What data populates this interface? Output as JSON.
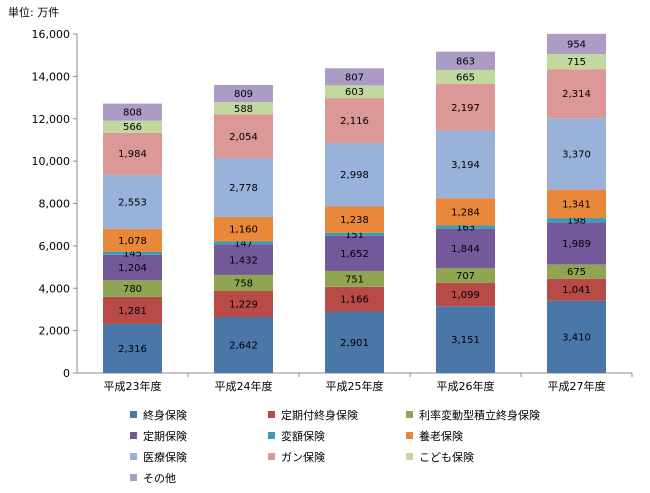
{
  "chart_data": {
    "type": "bar",
    "stacked": true,
    "unit_label": "単位: 万件",
    "categories": [
      "平成23年度",
      "平成24年度",
      "平成25年度",
      "平成26年度",
      "平成27年度"
    ],
    "ylim": [
      0,
      16000
    ],
    "yticks": [
      0,
      2000,
      4000,
      6000,
      8000,
      10000,
      12000,
      14000,
      16000
    ],
    "ytick_labels": [
      "0",
      "2,000",
      "4,000",
      "6,000",
      "8,000",
      "10,000",
      "12,000",
      "14,000",
      "16,000"
    ],
    "series": [
      {
        "name": "終身保険",
        "color": "#4a76a8",
        "values": [
          2316,
          2642,
          2901,
          3151,
          3410
        ],
        "labels": [
          "2,316",
          "2,642",
          "2,901",
          "3,151",
          "3,410"
        ]
      },
      {
        "name": "定期付終身保険",
        "color": "#b84a48",
        "values": [
          1281,
          1229,
          1166,
          1099,
          1041
        ],
        "labels": [
          "1,281",
          "1,229",
          "1,166",
          "1,099",
          "1,041"
        ]
      },
      {
        "name": "利率変動型積立終身保険",
        "color": "#8fa552",
        "values": [
          780,
          758,
          751,
          707,
          675
        ],
        "labels": [
          "780",
          "758",
          "751",
          "707",
          "675"
        ]
      },
      {
        "name": "定期保険",
        "color": "#74599a",
        "values": [
          1204,
          1432,
          1652,
          1844,
          1989
        ],
        "labels": [
          "1,204",
          "1,432",
          "1,652",
          "1,844",
          "1,989"
        ]
      },
      {
        "name": "変額保険",
        "color": "#3d9cb5",
        "values": [
          145,
          147,
          151,
          163,
          198
        ],
        "labels": [
          "145",
          "147",
          "151",
          "163",
          "198"
        ]
      },
      {
        "name": "養老保険",
        "color": "#e9883a",
        "values": [
          1078,
          1160,
          1238,
          1284,
          1341
        ],
        "labels": [
          "1,078",
          "1,160",
          "1,238",
          "1,284",
          "1,341"
        ]
      },
      {
        "name": "医療保険",
        "color": "#98b2d9",
        "values": [
          2553,
          2778,
          2998,
          3194,
          3370
        ],
        "labels": [
          "2,553",
          "2,778",
          "2,998",
          "3,194",
          "3,370"
        ]
      },
      {
        "name": "ガン保険",
        "color": "#dc9896",
        "values": [
          1984,
          2054,
          2116,
          2197,
          2314
        ],
        "labels": [
          "1,984",
          "2,054",
          "2,116",
          "2,197",
          "2,314"
        ]
      },
      {
        "name": "こども保険",
        "color": "#c3d89e",
        "values": [
          566,
          588,
          603,
          665,
          715
        ],
        "labels": [
          "566",
          "588",
          "603",
          "665",
          "715"
        ]
      },
      {
        "name": "その他",
        "color": "#ac9cc5",
        "values": [
          808,
          809,
          807,
          863,
          954
        ],
        "labels": [
          "808",
          "809",
          "807",
          "863",
          "954"
        ]
      }
    ],
    "legend_position": "bottom",
    "grid": false,
    "title": "",
    "xlabel": "",
    "ylabel": ""
  }
}
